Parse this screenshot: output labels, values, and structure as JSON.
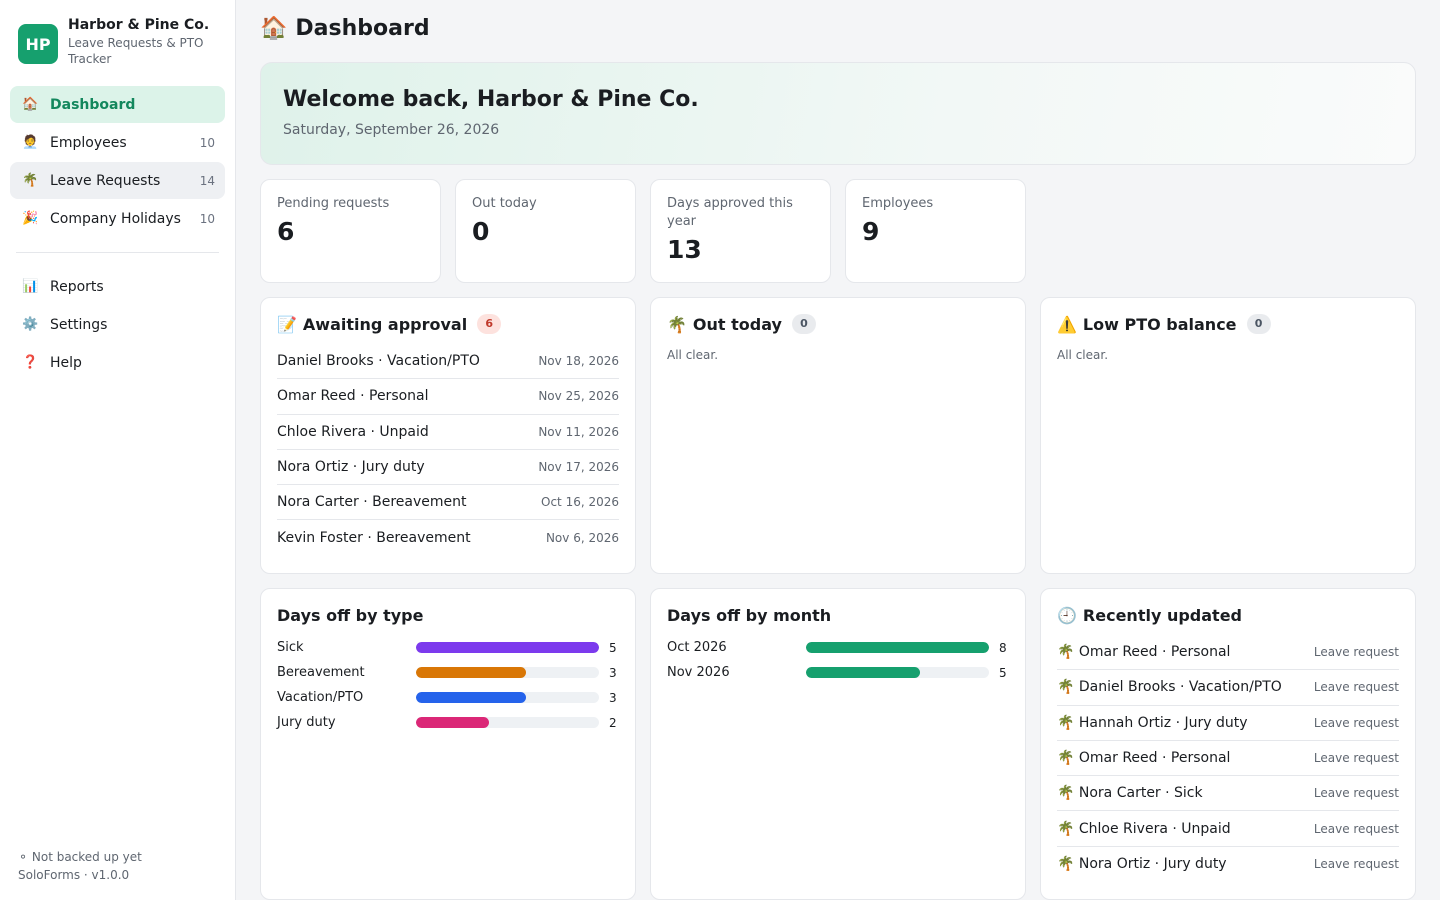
{
  "brand": {
    "initials": "HP",
    "name": "Harbor & Pine Co.",
    "subtitle": "Leave Requests & PTO Tracker"
  },
  "nav": {
    "items": [
      {
        "icon": "🏠",
        "label": "Dashboard",
        "count": ""
      },
      {
        "icon": "🧑‍💼",
        "label": "Employees",
        "count": "10"
      },
      {
        "icon": "🌴",
        "label": "Leave Requests",
        "count": "14"
      },
      {
        "icon": "🎉",
        "label": "Company Holidays",
        "count": "10"
      }
    ],
    "secondary": [
      {
        "icon": "📊",
        "label": "Reports"
      },
      {
        "icon": "⚙️",
        "label": "Settings"
      },
      {
        "icon": "❓",
        "label": "Help"
      }
    ]
  },
  "footer": {
    "backup": "⚬ Not backed up yet",
    "version": "SoloForms · v1.0.0"
  },
  "page": {
    "icon": "🏠",
    "title": "Dashboard"
  },
  "welcome": {
    "title": "Welcome back, Harbor & Pine Co.",
    "date": "Saturday, September 26, 2026"
  },
  "stats": [
    {
      "label": "Pending requests",
      "value": "6"
    },
    {
      "label": "Out today",
      "value": "0"
    },
    {
      "label": "Days approved this year",
      "value": "13"
    },
    {
      "label": "Employees",
      "value": "9"
    }
  ],
  "awaiting": {
    "icon": "📝",
    "title": "Awaiting approval",
    "count": "6",
    "items": [
      {
        "text": "Daniel Brooks · Vacation/PTO",
        "date": "Nov 18, 2026"
      },
      {
        "text": "Omar Reed · Personal",
        "date": "Nov 25, 2026"
      },
      {
        "text": "Chloe Rivera · Unpaid",
        "date": "Nov 11, 2026"
      },
      {
        "text": "Nora Ortiz · Jury duty",
        "date": "Nov 17, 2026"
      },
      {
        "text": "Nora Carter · Bereavement",
        "date": "Oct 16, 2026"
      },
      {
        "text": "Kevin Foster · Bereavement",
        "date": "Nov 6, 2026"
      }
    ]
  },
  "out_today": {
    "icon": "🌴",
    "title": "Out today",
    "count": "0",
    "empty": "All clear."
  },
  "low_pto": {
    "icon": "⚠️",
    "title": "Low PTO balance",
    "count": "0",
    "empty": "All clear."
  },
  "chart_data": [
    {
      "type": "bar",
      "title": "Days off by type",
      "categories": [
        "Sick",
        "Bereavement",
        "Vacation/PTO",
        "Jury duty"
      ],
      "values": [
        5,
        3,
        3,
        2
      ],
      "colors": [
        "#7c3aed",
        "#d97706",
        "#2563eb",
        "#db2777"
      ],
      "max": 5
    },
    {
      "type": "bar",
      "title": "Days off by month",
      "categories": [
        "Oct 2026",
        "Nov 2026"
      ],
      "values": [
        8,
        5
      ],
      "colors": [
        "#16a06e",
        "#16a06e"
      ],
      "max": 8
    }
  ],
  "recent": {
    "icon": "🕘",
    "title": "Recently updated",
    "items": [
      {
        "icon": "🌴",
        "text": "Omar Reed · Personal",
        "meta": "Leave request"
      },
      {
        "icon": "🌴",
        "text": "Daniel Brooks · Vacation/PTO",
        "meta": "Leave request"
      },
      {
        "icon": "🌴",
        "text": "Hannah Ortiz · Jury duty",
        "meta": "Leave request"
      },
      {
        "icon": "🌴",
        "text": "Omar Reed · Personal",
        "meta": "Leave request"
      },
      {
        "icon": "🌴",
        "text": "Nora Carter · Sick",
        "meta": "Leave request"
      },
      {
        "icon": "🌴",
        "text": "Chloe Rivera · Unpaid",
        "meta": "Leave request"
      },
      {
        "icon": "🌴",
        "text": "Nora Ortiz · Jury duty",
        "meta": "Leave request"
      }
    ]
  }
}
